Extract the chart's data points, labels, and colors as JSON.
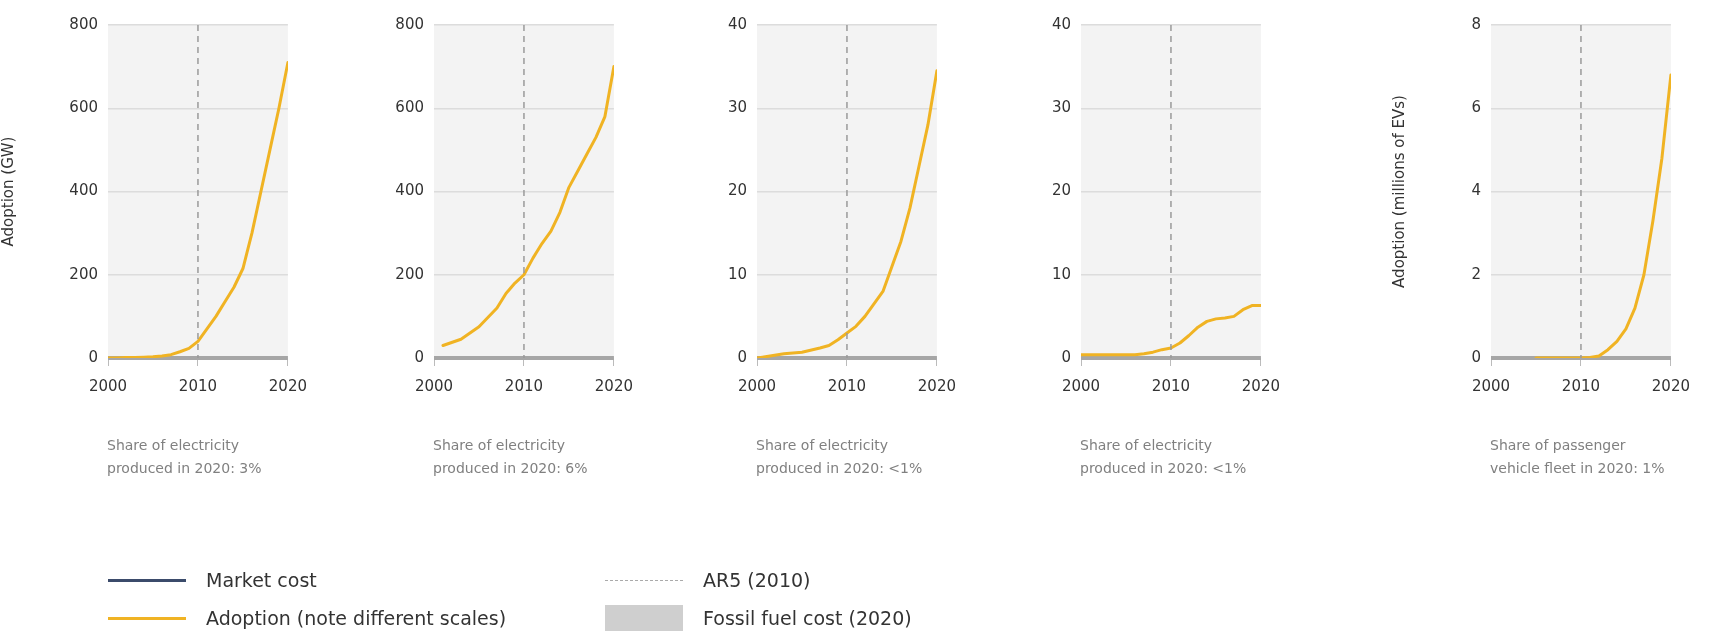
{
  "chart_data": [
    {
      "type": "line",
      "ylabel": "Adoption (GW)",
      "xlabel": "Share of electricity produced in 2020: 3%",
      "x": [
        2000,
        2001,
        2002,
        2003,
        2004,
        2005,
        2006,
        2007,
        2008,
        2009,
        2010,
        2011,
        2012,
        2013,
        2014,
        2015,
        2016,
        2017,
        2018,
        2019,
        2020
      ],
      "series": [
        {
          "color": "#f0b323",
          "values": [
            0,
            0,
            1,
            1,
            2,
            3,
            5,
            8,
            15,
            23,
            40,
            70,
            100,
            135,
            170,
            215,
            300,
            400,
            500,
            600,
            710
          ]
        }
      ],
      "xlim": [
        2000,
        2020
      ],
      "ylim": [
        0,
        800
      ],
      "xticks": [
        2000,
        2010,
        2020
      ],
      "yticks": [
        0,
        200,
        400,
        600,
        800
      ],
      "grid": "y",
      "ref_lines": [
        {
          "axis": "x",
          "value": 2010,
          "color": "#9a9a9a",
          "line_style": "dashed"
        }
      ]
    },
    {
      "type": "line",
      "xlabel": "Share of electricity produced in 2020: 6%",
      "x": [
        2001,
        2003,
        2005,
        2007,
        2008,
        2009,
        2010,
        2011,
        2012,
        2013,
        2014,
        2015,
        2016,
        2017,
        2018,
        2019,
        2020
      ],
      "series": [
        {
          "color": "#f0b323",
          "values": [
            30,
            45,
            75,
            120,
            155,
            180,
            200,
            240,
            275,
            305,
            350,
            410,
            450,
            490,
            530,
            580,
            700
          ]
        }
      ],
      "xlim": [
        2000,
        2020
      ],
      "ylim": [
        0,
        800
      ],
      "xticks": [
        2000,
        2010,
        2020
      ],
      "yticks": [
        0,
        200,
        400,
        600,
        800
      ],
      "grid": "y",
      "ref_lines": [
        {
          "axis": "x",
          "value": 2010,
          "color": "#9a9a9a",
          "line_style": "dashed"
        }
      ]
    },
    {
      "type": "line",
      "xlabel": "Share of electricity produced in 2020: <1%",
      "x": [
        2000,
        2003,
        2005,
        2007,
        2008,
        2009,
        2010,
        2011,
        2012,
        2013,
        2014,
        2015,
        2016,
        2017,
        2018,
        2019,
        2020
      ],
      "series": [
        {
          "color": "#f0b323",
          "values": [
            0,
            0.5,
            0.7,
            1.2,
            1.5,
            2.2,
            3,
            3.8,
            5,
            6.5,
            8,
            11,
            14,
            18,
            23,
            28,
            34.5
          ]
        }
      ],
      "xlim": [
        2000,
        2020
      ],
      "ylim": [
        0,
        40
      ],
      "xticks": [
        2000,
        2010,
        2020
      ],
      "yticks": [
        0,
        10,
        20,
        30,
        40
      ],
      "grid": "y",
      "ref_lines": [
        {
          "axis": "x",
          "value": 2010,
          "color": "#9a9a9a",
          "line_style": "dashed"
        }
      ]
    },
    {
      "type": "line",
      "xlabel": "Share of electricity produced in 2020: <1%",
      "x": [
        2000,
        2006,
        2007,
        2008,
        2009,
        2010,
        2011,
        2012,
        2013,
        2014,
        2015,
        2016,
        2017,
        2018,
        2019,
        2020
      ],
      "series": [
        {
          "color": "#f0b323",
          "values": [
            0.4,
            0.4,
            0.5,
            0.7,
            1,
            1.2,
            1.8,
            2.7,
            3.7,
            4.4,
            4.7,
            4.8,
            5,
            5.8,
            6.3,
            6.3
          ]
        }
      ],
      "xlim": [
        2000,
        2020
      ],
      "ylim": [
        0,
        40
      ],
      "xticks": [
        2000,
        2010,
        2020
      ],
      "yticks": [
        0,
        10,
        20,
        30,
        40
      ],
      "grid": "y",
      "ref_lines": [
        {
          "axis": "x",
          "value": 2010,
          "color": "#9a9a9a",
          "line_style": "dashed"
        }
      ]
    },
    {
      "type": "line",
      "ylabel": "Adoption (millions of EVs)",
      "xlabel": "Share of passenger vehicle fleet in 2020: 1%",
      "x": [
        2005,
        2010,
        2011,
        2012,
        2013,
        2014,
        2015,
        2016,
        2017,
        2018,
        2019,
        2020
      ],
      "series": [
        {
          "color": "#f0b323",
          "values": [
            0,
            0,
            0.01,
            0.05,
            0.2,
            0.4,
            0.7,
            1.2,
            2,
            3.3,
            4.8,
            6.8
          ]
        }
      ],
      "xlim": [
        2000,
        2020
      ],
      "ylim": [
        0,
        8
      ],
      "xticks": [
        2000,
        2010,
        2020
      ],
      "yticks": [
        0,
        2,
        4,
        6,
        8
      ],
      "grid": "y",
      "ref_lines": [
        {
          "axis": "x",
          "value": 2010,
          "color": "#9a9a9a",
          "line_style": "dashed"
        }
      ]
    },
    {
      "type": "other",
      "annotations": [
        "Market cost",
        "Adoption (note different scales)",
        "AR5 (2010)",
        "Fossil fuel cost (2020)"
      ]
    }
  ]
}
